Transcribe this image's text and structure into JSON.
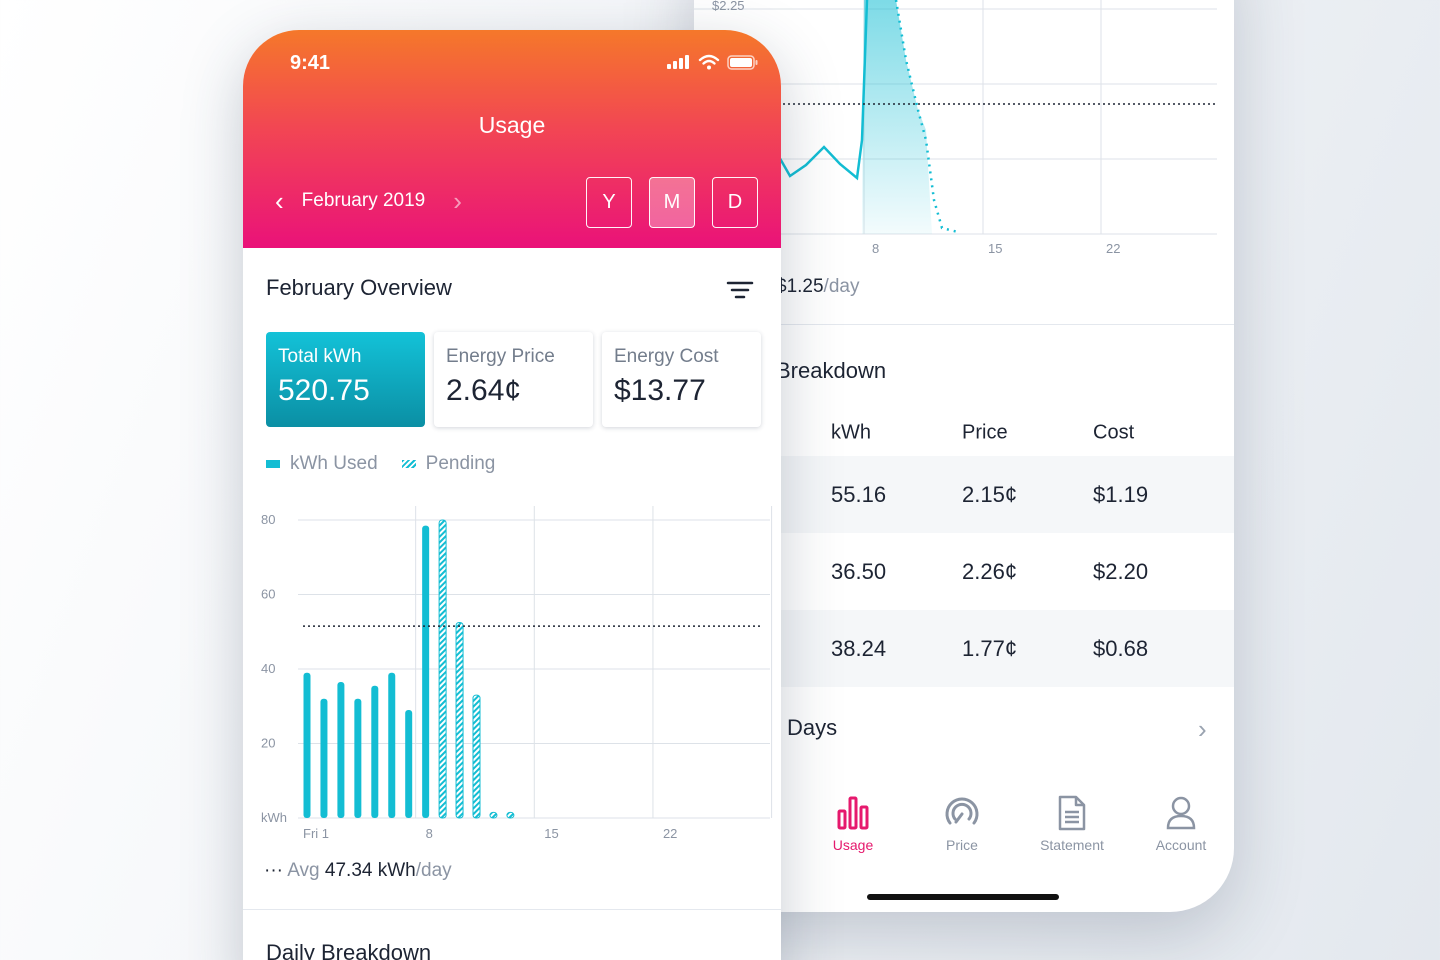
{
  "back_phone": {
    "chart": {
      "top_label": "$2.25",
      "x_ticks": [
        "8",
        "15",
        "22"
      ]
    },
    "avg": {
      "value": "$1.25",
      "unit": "/day"
    },
    "breakdown_title": "Breakdown",
    "table": {
      "headers": [
        "kWh",
        "Price",
        "Cost"
      ],
      "rows": [
        [
          "55.16",
          "2.15¢",
          "$1.19"
        ],
        [
          "36.50",
          "2.26¢",
          "$2.20"
        ],
        [
          "38.24",
          "1.77¢",
          "$0.68"
        ]
      ]
    },
    "all_days_label": "l Days",
    "nav": [
      {
        "label": "Usage",
        "icon": "bar-chart-icon"
      },
      {
        "label": "Price",
        "icon": "gauge-icon"
      },
      {
        "label": "Statement",
        "icon": "document-icon"
      },
      {
        "label": "Account",
        "icon": "user-icon"
      }
    ],
    "colors": {
      "accent": "#e6196d",
      "chart": "#13bdd3"
    }
  },
  "front_phone": {
    "status_time": "9:41",
    "header_title": "Usage",
    "month_label": "February 2019",
    "periods": [
      "Y",
      "M",
      "D"
    ],
    "active_period": "M",
    "overview_title": "February Overview",
    "stats": [
      {
        "label": "Total kWh",
        "value": "520.75"
      },
      {
        "label": "Energy Price",
        "value": "2.64¢"
      },
      {
        "label": "Energy Cost",
        "value": "$13.77"
      }
    ],
    "legend": {
      "used": "kWh Used",
      "pending": "Pending"
    },
    "avg": {
      "prefix": "Avg",
      "value": "47.34 kWh",
      "unit": "/day"
    },
    "daily_title": "Daily Breakdown",
    "colors": {
      "header_top": "#f5782a",
      "header_bottom": "#ea1279",
      "teal": "#13bdd3"
    }
  },
  "chart_data": {
    "type": "bar",
    "y_ticks": [
      "80",
      "60",
      "40",
      "20",
      "kWh"
    ],
    "x_tick_labels": [
      "Fri 1",
      "8",
      "15",
      "22"
    ],
    "ylim": [
      0,
      80
    ],
    "xlim": [
      0,
      28
    ],
    "average": 51.5,
    "series": [
      {
        "name": "kWh Used",
        "x": [
          1,
          2,
          3,
          4,
          5,
          6,
          7,
          8
        ],
        "values": [
          39,
          32,
          36.5,
          32,
          35.5,
          39,
          29,
          78.5
        ]
      },
      {
        "name": "Pending",
        "x": [
          9,
          10,
          11,
          12,
          13
        ],
        "values": [
          80,
          52.5,
          33,
          1.5,
          1.5
        ]
      }
    ]
  }
}
